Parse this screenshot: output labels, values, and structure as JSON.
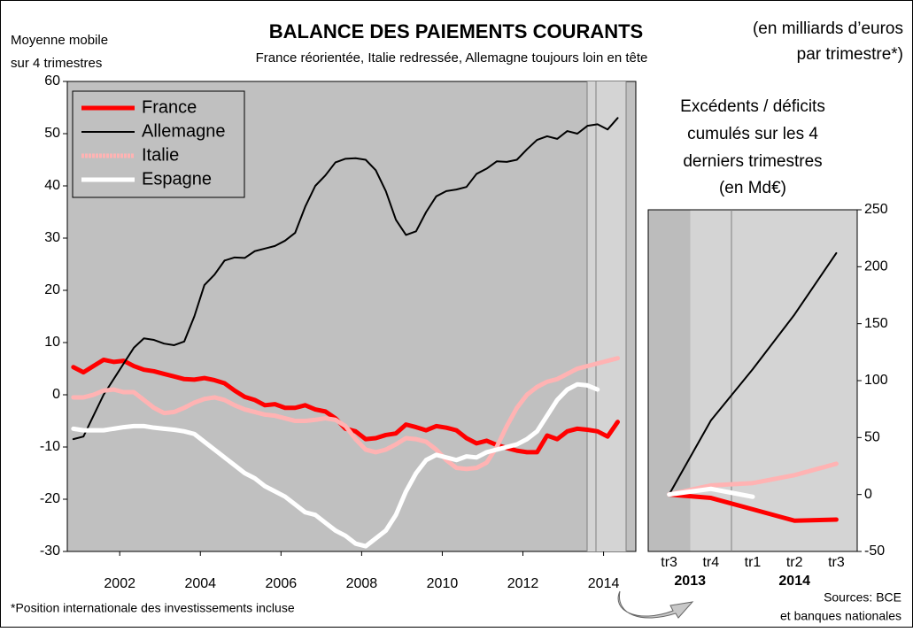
{
  "chart_data": [
    {
      "type": "line",
      "title": "BALANCE DES PAIEMENTS COURANTS",
      "subtitle": "France réorientée, Italie redressée, Allemagne toujours loin en tête",
      "y_label": [
        "Moyenne mobile",
        "sur 4 trimestres"
      ],
      "unit_note": [
        "(en milliards d’euros",
        "par trimestre*)"
      ],
      "legend": "upper left",
      "x": [
        2000.85,
        2001.1,
        2001.35,
        2001.6,
        2001.85,
        2002.1,
        2002.35,
        2002.6,
        2002.85,
        2003.1,
        2003.35,
        2003.6,
        2003.85,
        2004.1,
        2004.35,
        2004.6,
        2004.85,
        2005.1,
        2005.35,
        2005.6,
        2005.85,
        2006.1,
        2006.35,
        2006.6,
        2006.85,
        2007.1,
        2007.35,
        2007.6,
        2007.85,
        2008.1,
        2008.35,
        2008.6,
        2008.85,
        2009.1,
        2009.35,
        2009.6,
        2009.85,
        2010.1,
        2010.35,
        2010.6,
        2010.85,
        2011.1,
        2011.35,
        2011.6,
        2011.85,
        2012.1,
        2012.35,
        2012.6,
        2012.85,
        2013.1,
        2013.35,
        2013.6,
        2013.85,
        2014.1,
        2014.35
      ],
      "xlim": [
        2000.7,
        2014.8
      ],
      "xticks": [
        2002,
        2004,
        2006,
        2008,
        2010,
        2012,
        2014
      ],
      "ylim": [
        -30,
        60
      ],
      "yticks": [
        60,
        50,
        40,
        30,
        20,
        10,
        0,
        -10,
        -20,
        -30
      ],
      "series": [
        {
          "name": "France",
          "color": "#ff0000",
          "values": [
            5.3,
            4.3,
            5.5,
            6.7,
            6.3,
            6.5,
            5.5,
            4.8,
            4.5,
            4,
            3.5,
            3,
            2.9,
            3.2,
            2.8,
            2.2,
            0.8,
            -0.4,
            -1,
            -2,
            -1.8,
            -2.5,
            -2.5,
            -2,
            -2.8,
            -3.2,
            -4.5,
            -6.5,
            -7,
            -8.5,
            -8.3,
            -7.7,
            -7.4,
            -5.7,
            -6.2,
            -6.8,
            -6,
            -6.3,
            -6.8,
            -8.3,
            -9.3,
            -8.8,
            -9.6,
            -10.2,
            -10.7,
            -11,
            -11,
            -7.8,
            -8.5,
            -7,
            -6.5,
            -6.7,
            -7,
            -8,
            -5.2
          ]
        },
        {
          "name": "Allemagne",
          "color": "#000000",
          "values": [
            -8.5,
            -8,
            -4,
            0,
            3,
            6,
            9,
            10.8,
            10.5,
            9.8,
            9.5,
            10.2,
            15,
            21,
            23,
            25.7,
            26.3,
            26.2,
            27.5,
            28,
            28.5,
            29.5,
            31,
            36,
            40,
            42,
            44.5,
            45.2,
            45.3,
            45,
            43,
            39,
            33.5,
            30.6,
            31.3,
            35,
            38,
            39,
            39.3,
            39.8,
            42.3,
            43.3,
            44.7,
            44.6,
            45,
            47,
            48.8,
            49.5,
            49,
            50.5,
            50,
            51.5,
            51.8,
            50.8,
            53
          ]
        },
        {
          "name": "Italie",
          "color": "#ffb3b3",
          "values": [
            -0.5,
            -0.5,
            0,
            0.8,
            1,
            0.5,
            0.5,
            -1,
            -2.5,
            -3.5,
            -3.3,
            -2.5,
            -1.5,
            -0.8,
            -0.5,
            -1,
            -2,
            -2.8,
            -3.3,
            -3.8,
            -4,
            -4.5,
            -5,
            -5,
            -4.8,
            -4.5,
            -4.8,
            -6,
            -8.5,
            -10.5,
            -11,
            -10.5,
            -9.5,
            -8.3,
            -8.5,
            -9,
            -10.5,
            -12.5,
            -14,
            -14.2,
            -14,
            -13,
            -10,
            -6,
            -2.5,
            0,
            1.5,
            2.5,
            3,
            4,
            5,
            5.5,
            6,
            6.5,
            7
          ]
        },
        {
          "name": "Espagne",
          "color": "#ffffff",
          "values": [
            -6.5,
            -6.8,
            -6.8,
            -6.8,
            -6.5,
            -6.2,
            -6,
            -6,
            -6.3,
            -6.5,
            -6.7,
            -7,
            -7.5,
            -9,
            -10.5,
            -12,
            -13.5,
            -15,
            -16,
            -17.5,
            -18.5,
            -19.5,
            -21,
            -22.5,
            -23,
            -24.5,
            -26,
            -27,
            -28.5,
            -29,
            -27.5,
            -26,
            -23,
            -18.5,
            -15,
            -12.5,
            -11.5,
            -12,
            -12.5,
            -11.8,
            -12,
            -11,
            -10.5,
            -10,
            -9.5,
            -8.5,
            -7,
            -4,
            -1,
            1,
            2,
            1.8,
            1,
            null,
            null
          ]
        }
      ]
    },
    {
      "type": "line",
      "title": [
        "Excédents / déficits",
        "cumulés sur les 4",
        "derniers trimestres",
        "(en Md€)"
      ],
      "categories": [
        "tr3",
        "tr4",
        "tr1",
        "tr2",
        "tr3"
      ],
      "category_years": [
        "2013",
        "2013",
        "2014",
        "2014",
        "2014"
      ],
      "yaxis_side": "right",
      "ylim": [
        -50,
        250
      ],
      "yticks": [
        250,
        200,
        150,
        100,
        50,
        0,
        -50
      ],
      "series": [
        {
          "name": "France",
          "color": "#ff0000",
          "values": [
            0,
            -3,
            -13,
            -23,
            -22
          ]
        },
        {
          "name": "Allemagne",
          "color": "#000000",
          "values": [
            0,
            65,
            110,
            158,
            212
          ]
        },
        {
          "name": "Italie",
          "color": "#ffb3b3",
          "values": [
            0,
            8,
            10,
            17,
            27
          ]
        },
        {
          "name": "Espagne",
          "color": "#ffffff",
          "values": [
            0,
            5,
            -2,
            null,
            null
          ]
        }
      ]
    }
  ],
  "footnote": "*Position internationale des investissements incluse",
  "sources": [
    "Sources: BCE",
    "et banques nationales"
  ]
}
